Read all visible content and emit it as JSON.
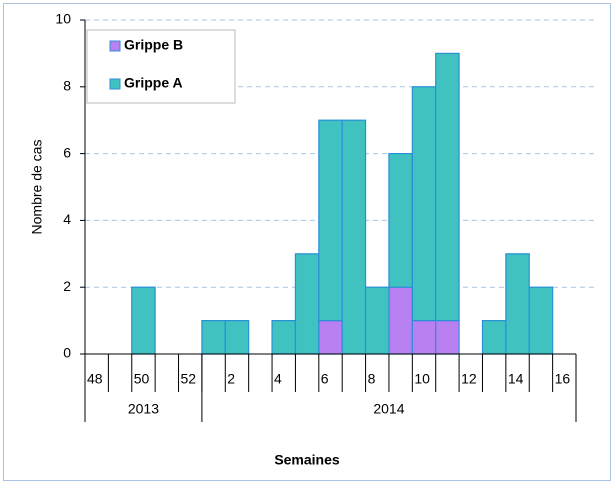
{
  "chart_data": {
    "type": "stacked_bar",
    "categories": [
      "48",
      null,
      "50",
      null,
      "52",
      null,
      "2",
      null,
      "4",
      null,
      "6",
      null,
      "8",
      null,
      "10",
      null,
      "12",
      null,
      "14",
      null,
      "16"
    ],
    "years": [
      "2013",
      "2013",
      "2013",
      "2013",
      "2013",
      "2014",
      "2014",
      "2014",
      "2014",
      "2014",
      "2014",
      "2014",
      "2014",
      "2014",
      "2014",
      "2014",
      "2014",
      "2014",
      "2014",
      "2014",
      "2014"
    ],
    "series": [
      {
        "name": "Grippe B",
        "color": "#b880f0",
        "values": [
          0,
          0,
          0,
          0,
          0,
          0,
          0,
          0,
          0,
          0,
          1,
          0,
          0,
          2,
          1,
          1,
          0,
          0,
          0,
          0,
          0
        ]
      },
      {
        "name": "Grippe A",
        "color": "#3fc2c0",
        "values": [
          0,
          0,
          2,
          0,
          0,
          1,
          1,
          0,
          1,
          3,
          6,
          7,
          2,
          4,
          7,
          8,
          0,
          1,
          3,
          2,
          0
        ]
      }
    ],
    "ylim": [
      0,
      10
    ],
    "yticks": [
      0,
      2,
      4,
      6,
      8,
      10
    ],
    "grid": true,
    "xlabel": "Semaines",
    "ylabel": "Nombre de cas",
    "legend": "top-left"
  }
}
